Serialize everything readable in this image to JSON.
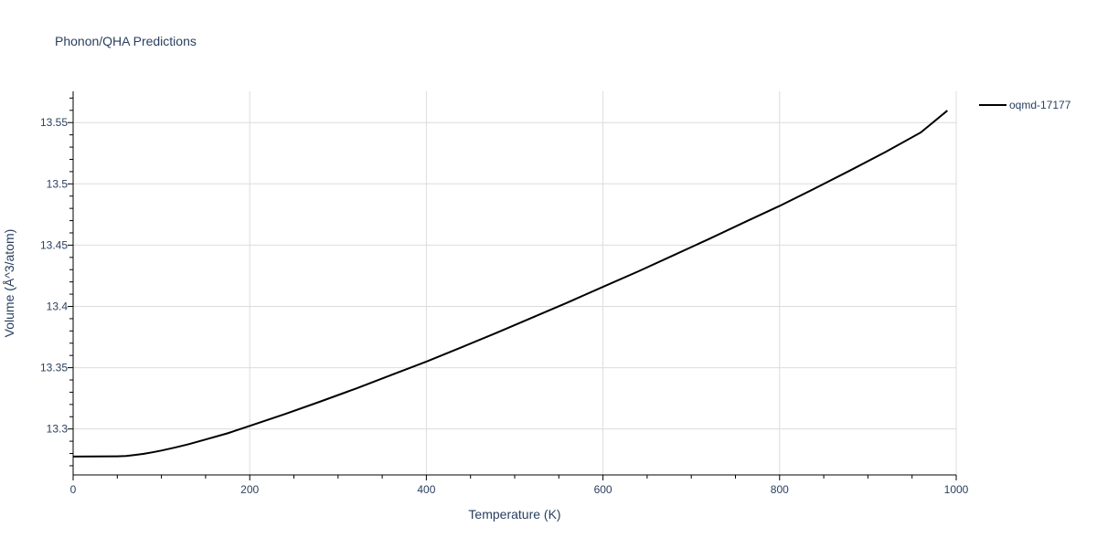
{
  "chart_data": {
    "type": "line",
    "title": "Phonon/QHA Predictions",
    "xlabel": "Temperature (K)",
    "ylabel": "Volume (Å^3/atom)",
    "xlim": [
      0,
      1000
    ],
    "ylim": [
      13.2625,
      13.5755
    ],
    "xticks": [
      0,
      200,
      400,
      600,
      800,
      1000
    ],
    "xtick_labels": [
      "0",
      "200",
      "400",
      "600",
      "800",
      "1000"
    ],
    "yticks": [
      13.3,
      13.35,
      13.4,
      13.45,
      13.5,
      13.55
    ],
    "ytick_labels": [
      "13.3",
      "13.35",
      "13.4",
      "13.45",
      "13.5",
      "13.55"
    ],
    "grid": true,
    "legend_position": "top-right",
    "series": [
      {
        "name": "oqmd-17177",
        "color": "#000000",
        "x": [
          0,
          25,
          50,
          60,
          70,
          80,
          90,
          100,
          115,
          130,
          150,
          175,
          200,
          240,
          280,
          320,
          360,
          400,
          440,
          480,
          520,
          560,
          600,
          640,
          680,
          720,
          760,
          800,
          840,
          880,
          920,
          960,
          990
        ],
        "y": [
          13.2775,
          13.2776,
          13.2777,
          13.278,
          13.2788,
          13.2797,
          13.281,
          13.2824,
          13.2848,
          13.2874,
          13.2914,
          13.2965,
          13.3025,
          13.3122,
          13.3224,
          13.3329,
          13.344,
          13.355,
          13.3667,
          13.3786,
          13.3909,
          13.4032,
          13.416,
          13.4286,
          13.4418,
          13.455,
          13.4686,
          13.482,
          13.4963,
          13.511,
          13.526,
          13.542,
          13.5598
        ]
      }
    ]
  }
}
